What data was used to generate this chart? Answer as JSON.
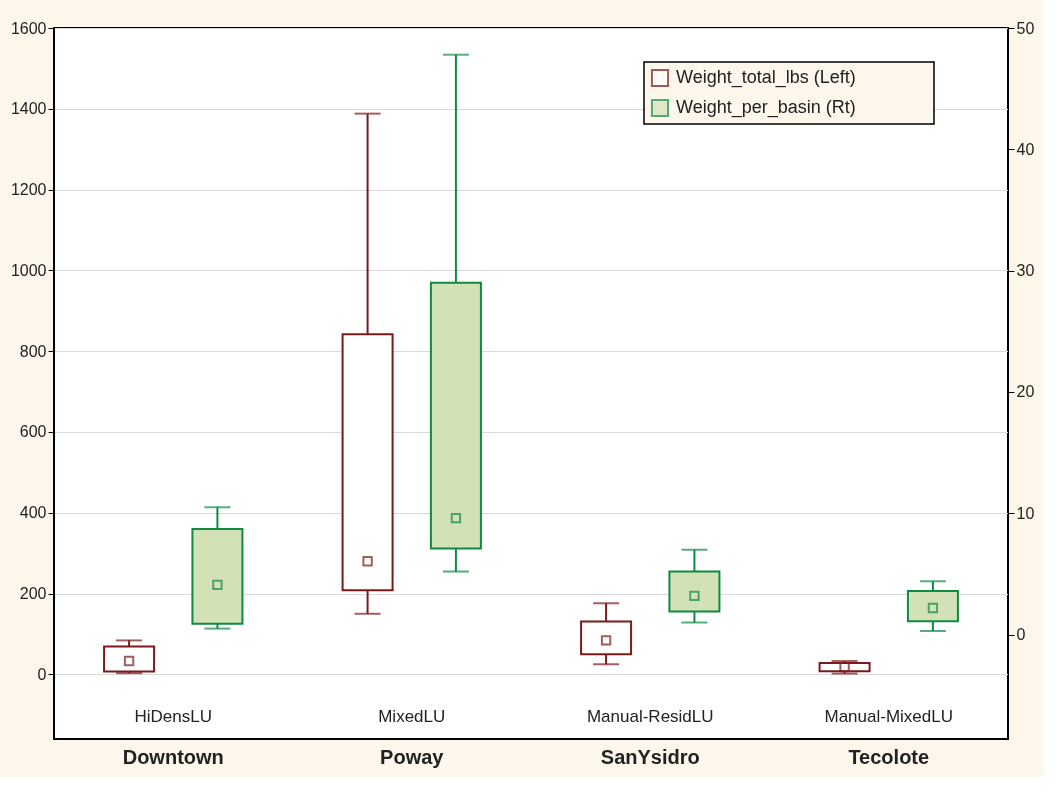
{
  "chart_data": {
    "type": "box",
    "categories": [
      "Downtown",
      "Poway",
      "SanYsidro",
      "Tecolote"
    ],
    "series": [
      {
        "name": "Weight_total_lbs (Left)",
        "color": "#7a1a1c",
        "boxes": [
          {
            "low": 3,
            "q1": 7,
            "median": 33,
            "q3": 69,
            "high": 84
          },
          {
            "low": 150,
            "q1": 208,
            "median": 280,
            "q3": 842,
            "high": 1388
          },
          {
            "low": 25,
            "q1": 50,
            "median": 84,
            "q3": 131,
            "high": 176
          },
          {
            "low": 2,
            "q1": 8,
            "median": 18,
            "q3": 28,
            "high": 33
          }
        ]
      },
      {
        "name": "Weight_per_basin (Rt)",
        "color": "#0e8a43",
        "axis": "y2",
        "boxes": [
          {
            "low": 0.5,
            "q1": 0.9,
            "median": 4.1,
            "q3": 8.7,
            "high": 10.5
          },
          {
            "low": 5.2,
            "q1": 7.1,
            "median": 9.6,
            "q3": 29.0,
            "high": 47.8
          },
          {
            "low": 1.0,
            "q1": 1.9,
            "median": 3.2,
            "q3": 5.2,
            "high": 7.0
          },
          {
            "low": 0.3,
            "q1": 1.1,
            "median": 2.2,
            "q3": 3.6,
            "high": 4.4
          }
        ]
      }
    ],
    "ylim": [
      -160,
      1600
    ],
    "yticks": [
      0,
      200,
      400,
      600,
      800,
      1000,
      1200,
      1400,
      1600
    ],
    "y2lim": [
      -8.6,
      50
    ],
    "y2ticks": [
      0,
      10,
      20,
      30,
      40,
      50
    ],
    "annotations": [
      "HiDensLU",
      "MixedLU",
      "Manual-ResidLU",
      "Manual-MixedLU"
    ],
    "marker": "square",
    "legend": "top right",
    "grid": "y"
  }
}
